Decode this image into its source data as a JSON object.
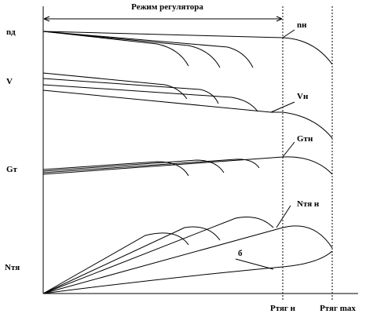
{
  "header": {
    "title": "Режим регулятора"
  },
  "left_labels": [
    "nд",
    "V",
    "Gт",
    "Nтя"
  ],
  "curve_labels": [
    "nн",
    "Vн",
    "Gтн",
    "Nтя н",
    "б"
  ],
  "x_labels": [
    "Pтяг н",
    "Pтяг max"
  ]
}
